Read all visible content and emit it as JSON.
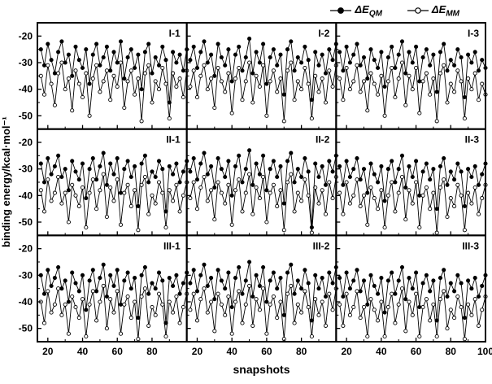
{
  "axes": {
    "ylabel": "binding energy/kcal·mol⁻¹",
    "xlabel": "snapshots"
  },
  "legend": {
    "qm": {
      "prefix": "ΔE",
      "sub": "QM",
      "marker": "filled-circle"
    },
    "mm": {
      "prefix": "ΔE",
      "sub": "MM",
      "marker": "open-circle"
    }
  },
  "colors": {
    "line": "#000000",
    "qm_fill": "#000000",
    "mm_fill": "#ffffff"
  },
  "chart_data": {
    "type": "line",
    "grid": false,
    "layout": {
      "rows": 3,
      "cols": 3,
      "legend_position": "top-right"
    },
    "xlim": [
      14,
      100
    ],
    "ylim": [
      -55,
      -15
    ],
    "x_ticks": [
      20,
      40,
      60,
      80,
      100
    ],
    "x_minor_ticks": [
      30,
      50,
      70,
      90
    ],
    "y_ticks": [
      -20,
      -30,
      -40,
      -50
    ],
    "y_minor_ticks": [
      -25,
      -35,
      -45
    ],
    "x_start": 16,
    "x_step": 2,
    "series": [
      {
        "name": "ΔE_QM",
        "marker": "filled-circle"
      },
      {
        "name": "ΔE_MM",
        "marker": "open-circle"
      }
    ],
    "panels": [
      {
        "label": "I-1",
        "qm": [
          -25,
          -31,
          -23,
          -29,
          -34,
          -26,
          -22,
          -30,
          -27,
          -35,
          -24,
          -29,
          -32,
          -25,
          -38,
          -27,
          -23,
          -31,
          -28,
          -24,
          -33,
          -26,
          -30,
          -22,
          -36,
          -28,
          -25,
          -32,
          -27,
          -40,
          -26,
          -23,
          -34,
          -28,
          -31,
          -24,
          -29,
          -45,
          -26,
          -30,
          -27,
          -33,
          -25
        ],
        "mm": [
          -35,
          -42,
          -31,
          -38,
          -46,
          -34,
          -30,
          -40,
          -36,
          -48,
          -33,
          -38,
          -43,
          -34,
          -50,
          -36,
          -31,
          -41,
          -37,
          -33,
          -44,
          -35,
          -39,
          -30,
          -47,
          -37,
          -33,
          -42,
          -36,
          -52,
          -34,
          -31,
          -45,
          -37,
          -40,
          -32,
          -38,
          -51,
          -34,
          -39,
          -36,
          -43,
          -33
        ]
      },
      {
        "label": "I-2",
        "qm": [
          -29,
          -24,
          -32,
          -26,
          -22,
          -30,
          -27,
          -35,
          -23,
          -28,
          -31,
          -25,
          -37,
          -27,
          -24,
          -33,
          -28,
          -21,
          -34,
          -26,
          -30,
          -23,
          -38,
          -28,
          -25,
          -31,
          -27,
          -42,
          -25,
          -22,
          -33,
          -28,
          -30,
          -24,
          -29,
          -44,
          -26,
          -31,
          -27,
          -34,
          -25,
          -29,
          -23
        ],
        "mm": [
          -39,
          -33,
          -43,
          -35,
          -31,
          -40,
          -36,
          -47,
          -32,
          -37,
          -41,
          -34,
          -49,
          -36,
          -32,
          -44,
          -37,
          -30,
          -45,
          -35,
          -39,
          -31,
          -50,
          -37,
          -33,
          -41,
          -36,
          -52,
          -33,
          -30,
          -44,
          -37,
          -40,
          -32,
          -38,
          -51,
          -35,
          -41,
          -36,
          -45,
          -33,
          -39,
          -31
        ]
      },
      {
        "label": "I-3",
        "qm": [
          -26,
          -33,
          -24,
          -30,
          -27,
          -23,
          -31,
          -28,
          -36,
          -25,
          -29,
          -32,
          -26,
          -39,
          -28,
          -24,
          -32,
          -27,
          -22,
          -34,
          -26,
          -30,
          -24,
          -37,
          -28,
          -25,
          -31,
          -27,
          -41,
          -26,
          -23,
          -33,
          -29,
          -31,
          -25,
          -28,
          -43,
          -27,
          -30,
          -26,
          -33,
          -29,
          -32
        ],
        "mm": [
          -36,
          -44,
          -32,
          -40,
          -37,
          -31,
          -41,
          -37,
          -48,
          -34,
          -38,
          -42,
          -35,
          -50,
          -37,
          -32,
          -43,
          -36,
          -30,
          -46,
          -35,
          -40,
          -32,
          -49,
          -37,
          -34,
          -42,
          -36,
          -52,
          -34,
          -31,
          -45,
          -38,
          -41,
          -33,
          -37,
          -51,
          -36,
          -40,
          -34,
          -44,
          -38,
          -42
        ]
      },
      {
        "label": "II-1",
        "qm": [
          -28,
          -35,
          -26,
          -32,
          -29,
          -25,
          -33,
          -30,
          -38,
          -27,
          -31,
          -34,
          -28,
          -41,
          -30,
          -26,
          -34,
          -29,
          -24,
          -36,
          -28,
          -32,
          -26,
          -39,
          -30,
          -27,
          -33,
          -29,
          -44,
          -28,
          -25,
          -35,
          -31,
          -33,
          -27,
          -30,
          -46,
          -29,
          -32,
          -28,
          -35,
          -31,
          -27
        ],
        "mm": [
          -38,
          -46,
          -34,
          -42,
          -39,
          -33,
          -43,
          -39,
          -50,
          -36,
          -40,
          -44,
          -37,
          -52,
          -39,
          -34,
          -45,
          -38,
          -32,
          -48,
          -37,
          -42,
          -34,
          -51,
          -39,
          -36,
          -44,
          -38,
          -53,
          -36,
          -33,
          -47,
          -40,
          -43,
          -35,
          -39,
          -52,
          -38,
          -42,
          -36,
          -46,
          -40,
          -35
        ]
      },
      {
        "label": "II-2",
        "qm": [
          -31,
          -26,
          -34,
          -28,
          -24,
          -32,
          -29,
          -37,
          -26,
          -30,
          -33,
          -27,
          -40,
          -29,
          -25,
          -35,
          -30,
          -23,
          -36,
          -28,
          -32,
          -25,
          -38,
          -30,
          -27,
          -33,
          -29,
          -43,
          -27,
          -24,
          -35,
          -30,
          -33,
          -26,
          -31,
          -52,
          -28,
          -33,
          -29,
          -36,
          -27,
          -31,
          -25
        ],
        "mm": [
          -41,
          -35,
          -45,
          -37,
          -33,
          -42,
          -38,
          -49,
          -35,
          -39,
          -43,
          -36,
          -51,
          -38,
          -34,
          -46,
          -39,
          -32,
          -47,
          -37,
          -41,
          -33,
          -50,
          -39,
          -36,
          -44,
          -38,
          -53,
          -35,
          -32,
          -46,
          -39,
          -42,
          -34,
          -40,
          -54,
          -37,
          -43,
          -38,
          -47,
          -35,
          -41,
          -33
        ]
      },
      {
        "label": "II-3",
        "qm": [
          -29,
          -36,
          -27,
          -33,
          -30,
          -26,
          -34,
          -30,
          -39,
          -28,
          -32,
          -35,
          -29,
          -42,
          -30,
          -27,
          -35,
          -30,
          -25,
          -37,
          -29,
          -33,
          -27,
          -40,
          -31,
          -28,
          -34,
          -30,
          -45,
          -29,
          -26,
          -36,
          -31,
          -34,
          -28,
          -31,
          -44,
          -30,
          -33,
          -29,
          -36,
          -32,
          -28
        ],
        "mm": [
          -39,
          -47,
          -35,
          -43,
          -40,
          -34,
          -44,
          -40,
          -51,
          -37,
          -41,
          -45,
          -38,
          -52,
          -40,
          -35,
          -46,
          -39,
          -33,
          -49,
          -38,
          -43,
          -35,
          -52,
          -40,
          -37,
          -45,
          -39,
          -54,
          -37,
          -34,
          -48,
          -41,
          -44,
          -36,
          -40,
          -53,
          -39,
          -43,
          -37,
          -47,
          -41,
          -36
        ]
      },
      {
        "label": "III-1",
        "qm": [
          -30,
          -37,
          -28,
          -34,
          -31,
          -27,
          -35,
          -32,
          -40,
          -29,
          -33,
          -36,
          -30,
          -43,
          -32,
          -28,
          -36,
          -31,
          -26,
          -38,
          -30,
          -34,
          -28,
          -41,
          -32,
          -29,
          -35,
          -31,
          -46,
          -30,
          -27,
          -37,
          -33,
          -35,
          -29,
          -32,
          -48,
          -31,
          -34,
          -30,
          -37,
          -33,
          -29
        ],
        "mm": [
          -40,
          -48,
          -36,
          -44,
          -41,
          -35,
          -45,
          -41,
          -52,
          -38,
          -42,
          -46,
          -39,
          -53,
          -41,
          -36,
          -47,
          -40,
          -34,
          -50,
          -39,
          -44,
          -36,
          -52,
          -41,
          -38,
          -46,
          -40,
          -54,
          -38,
          -35,
          -49,
          -42,
          -45,
          -37,
          -41,
          -53,
          -40,
          -44,
          -38,
          -48,
          -42,
          -37
        ]
      },
      {
        "label": "III-2",
        "qm": [
          -33,
          -28,
          -36,
          -30,
          -26,
          -34,
          -31,
          -39,
          -28,
          -32,
          -35,
          -29,
          -42,
          -31,
          -27,
          -37,
          -32,
          -25,
          -38,
          -30,
          -34,
          -27,
          -40,
          -32,
          -29,
          -35,
          -31,
          -45,
          -29,
          -26,
          -37,
          -32,
          -35,
          -28,
          -33,
          -47,
          -30,
          -35,
          -31,
          -38,
          -29,
          -33,
          -27
        ],
        "mm": [
          -43,
          -37,
          -47,
          -39,
          -35,
          -44,
          -40,
          -51,
          -37,
          -41,
          -45,
          -38,
          -52,
          -40,
          -36,
          -48,
          -41,
          -34,
          -49,
          -39,
          -43,
          -35,
          -52,
          -41,
          -38,
          -46,
          -40,
          -54,
          -37,
          -34,
          -48,
          -41,
          -44,
          -36,
          -42,
          -53,
          -39,
          -45,
          -40,
          -49,
          -37,
          -43,
          -35
        ]
      },
      {
        "label": "III-3",
        "qm": [
          -31,
          -38,
          -29,
          -35,
          -32,
          -28,
          -36,
          -32,
          -41,
          -30,
          -34,
          -37,
          -31,
          -44,
          -32,
          -29,
          -37,
          -32,
          -27,
          -39,
          -31,
          -35,
          -29,
          -42,
          -33,
          -30,
          -36,
          -32,
          -47,
          -31,
          -28,
          -38,
          -33,
          -36,
          -30,
          -33,
          -46,
          -32,
          -35,
          -31,
          -38,
          -34,
          -30
        ],
        "mm": [
          -41,
          -49,
          -37,
          -45,
          -42,
          -36,
          -46,
          -42,
          -53,
          -39,
          -43,
          -47,
          -40,
          -53,
          -42,
          -37,
          -48,
          -41,
          -35,
          -51,
          -40,
          -45,
          -37,
          -53,
          -42,
          -39,
          -47,
          -41,
          -53,
          -39,
          -36,
          -50,
          -43,
          -46,
          -38,
          -42,
          -54,
          -41,
          -45,
          -39,
          -49,
          -43,
          -38
        ]
      }
    ]
  }
}
